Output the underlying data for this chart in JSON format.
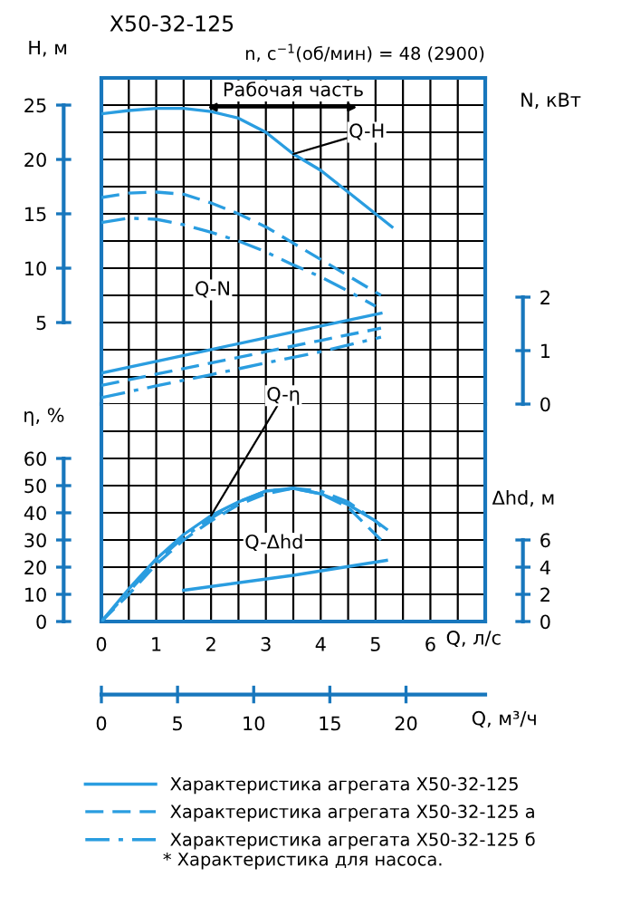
{
  "chart_data": [
    {
      "type": "line",
      "title": "Х50-32-125",
      "subtitle": "n, с$^{−1}$(об/мин) = 48 (2900)",
      "ylabel": "H, м",
      "y2label": "N, кВт",
      "tick_labels": "y",
      "xlim": [
        0,
        7
      ],
      "xticks": [
        0,
        {
          "value": 0.5,
          "label": null
        },
        1,
        {
          "value": 1.5,
          "label": null
        },
        2,
        {
          "value": 2.5,
          "label": null
        },
        3,
        {
          "value": 3.5,
          "label": null
        },
        4,
        {
          "value": 4.5,
          "label": null
        },
        5,
        {
          "value": 5.5,
          "label": null
        },
        6,
        {
          "value": 6.5,
          "label": null
        }
      ],
      "ylim": [
        -2.5,
        27.5
      ],
      "yticks": [
        {
          "value": -2.5,
          "label": null
        },
        {
          "value": 0,
          "label": null
        },
        {
          "value": 2.5,
          "label": null
        },
        5,
        {
          "value": 7.5,
          "label": null
        },
        10,
        {
          "value": 12.5,
          "label": null
        },
        15,
        {
          "value": 17.5,
          "label": null
        },
        20,
        {
          "value": 22.5,
          "label": null
        },
        25
      ],
      "y2lim": [
        0,
        6.1
      ],
      "y2ticks": [
        0,
        1,
        2
      ],
      "grid": true,
      "legend": "bottom",
      "marker": "none",
      "annotations": [
        {
          "text": "Q-H",
          "x": 3.5,
          "y": 20.5
        },
        "Рабочая часть",
        "Q-N"
      ],
      "series": [
        {
          "name": "Характеристика агрегата Х50-32-125",
          "color": "#2a9de0",
          "line_style": "solid",
          "x": [
            0,
            0.5,
            1,
            1.5,
            2,
            2.5,
            3,
            3.5,
            4,
            4.5,
            5,
            5.3
          ],
          "values": [
            24.2,
            24.5,
            24.7,
            24.7,
            24.4,
            23.8,
            22.5,
            20.5,
            19,
            17,
            15,
            13.8
          ]
        },
        {
          "name": "Характеристика агрегата Х50-32-125 а",
          "color": "#2a9de0",
          "line_style": "dashed",
          "x": [
            0,
            0.5,
            1,
            1.5,
            2,
            2.5,
            3,
            3.5,
            4,
            4.5,
            5,
            5.1
          ],
          "values": [
            16.5,
            16.9,
            17,
            16.8,
            16,
            15,
            13.8,
            12.3,
            10.8,
            9.3,
            7.8,
            7.5
          ]
        },
        {
          "name": "Характеристика агрегата Х50-32-125 б",
          "color": "#2a9de0",
          "line_style": "dashdot",
          "x": [
            0,
            0.5,
            1,
            1.5,
            2,
            2.5,
            3,
            3.5,
            4,
            4.5,
            5
          ],
          "values": [
            14.2,
            14.6,
            14.5,
            14,
            13.3,
            12.5,
            11.5,
            10.3,
            9.2,
            7.9,
            6.5
          ]
        },
        {
          "color": "#2a9de0",
          "line_style": "solid",
          "axis": "y2",
          "x": [
            0,
            1,
            2,
            3,
            4,
            5.1
          ],
          "values": [
            0.58,
            0.8,
            1.02,
            1.24,
            1.46,
            1.7
          ]
        },
        {
          "color": "#2a9de0",
          "line_style": "dashed",
          "axis": "y2",
          "x": [
            0,
            1,
            2,
            3,
            4,
            5.1
          ],
          "values": [
            0.35,
            0.56,
            0.77,
            0.98,
            1.19,
            1.42
          ]
        },
        {
          "color": "#2a9de0",
          "line_style": "dashdot",
          "axis": "y2",
          "x": [
            0,
            1,
            2,
            3,
            4,
            5.1
          ],
          "values": [
            0.12,
            0.34,
            0.55,
            0.77,
            0.98,
            1.25
          ]
        }
      ]
    },
    {
      "type": "line",
      "xlabel": "Q, л/с",
      "x2label": "Q, м³/ч",
      "ylabel": "η, %",
      "y2label": "Δhd, м",
      "xlim": [
        0,
        7
      ],
      "xticks": [
        0,
        {
          "value": 0.5,
          "label": null
        },
        1,
        {
          "value": 1.5,
          "label": null
        },
        2,
        {
          "value": 2.5,
          "label": null
        },
        3,
        {
          "value": 3.5,
          "label": null
        },
        4,
        {
          "value": 4.5,
          "label": null
        },
        5,
        {
          "value": 5.5,
          "label": null
        },
        6,
        {
          "value": 6.5,
          "label": null
        }
      ],
      "x2lim": [
        0,
        25.2
      ],
      "x2ticks": [
        0,
        5,
        10,
        15,
        20
      ],
      "ylim": [
        0,
        80
      ],
      "yticks": [
        0,
        10,
        20,
        30,
        40,
        50,
        60,
        {
          "value": 70,
          "label": null
        }
      ],
      "y2lim": [
        0,
        16
      ],
      "y2ticks": [
        0,
        2,
        4,
        6
      ],
      "grid": true,
      "marker": "none",
      "annotations": [
        {
          "text": "Q-η",
          "x": 2,
          "y": 39
        },
        "Q-Δhd",
        "* Характеристика для насоса."
      ],
      "series": [
        {
          "color": "#2a9de0",
          "line_style": "solid",
          "x": [
            0,
            0.5,
            1,
            1.5,
            2,
            2.5,
            3,
            3.5,
            4,
            4.5,
            5,
            5.2
          ],
          "values": [
            0,
            12,
            23,
            32,
            39,
            44,
            48,
            49,
            47,
            43,
            37,
            34
          ]
        },
        {
          "color": "#2a9de0",
          "line_style": "dashed",
          "x": [
            0,
            0.5,
            1,
            1.5,
            2,
            2.5,
            3,
            3.5,
            4,
            4.5,
            5,
            5.1
          ],
          "values": [
            0,
            10,
            21,
            30,
            37,
            43,
            47,
            49,
            47,
            42,
            32,
            30
          ]
        },
        {
          "color": "#2a9de0",
          "line_style": "dashdot",
          "x": [
            0,
            0.5,
            1,
            1.5,
            2,
            2.5,
            3,
            3.5,
            4,
            4.5,
            5,
            5.1
          ],
          "values": [
            0,
            11,
            22,
            31,
            38,
            44,
            48,
            49,
            48,
            44,
            37,
            35
          ]
        },
        {
          "color": "#2a9de0",
          "line_style": "solid",
          "axis": "y2",
          "x": [
            1.5,
            3.5,
            5.2
          ],
          "values": [
            2.3,
            3.4,
            4.5
          ]
        }
      ]
    }
  ]
}
